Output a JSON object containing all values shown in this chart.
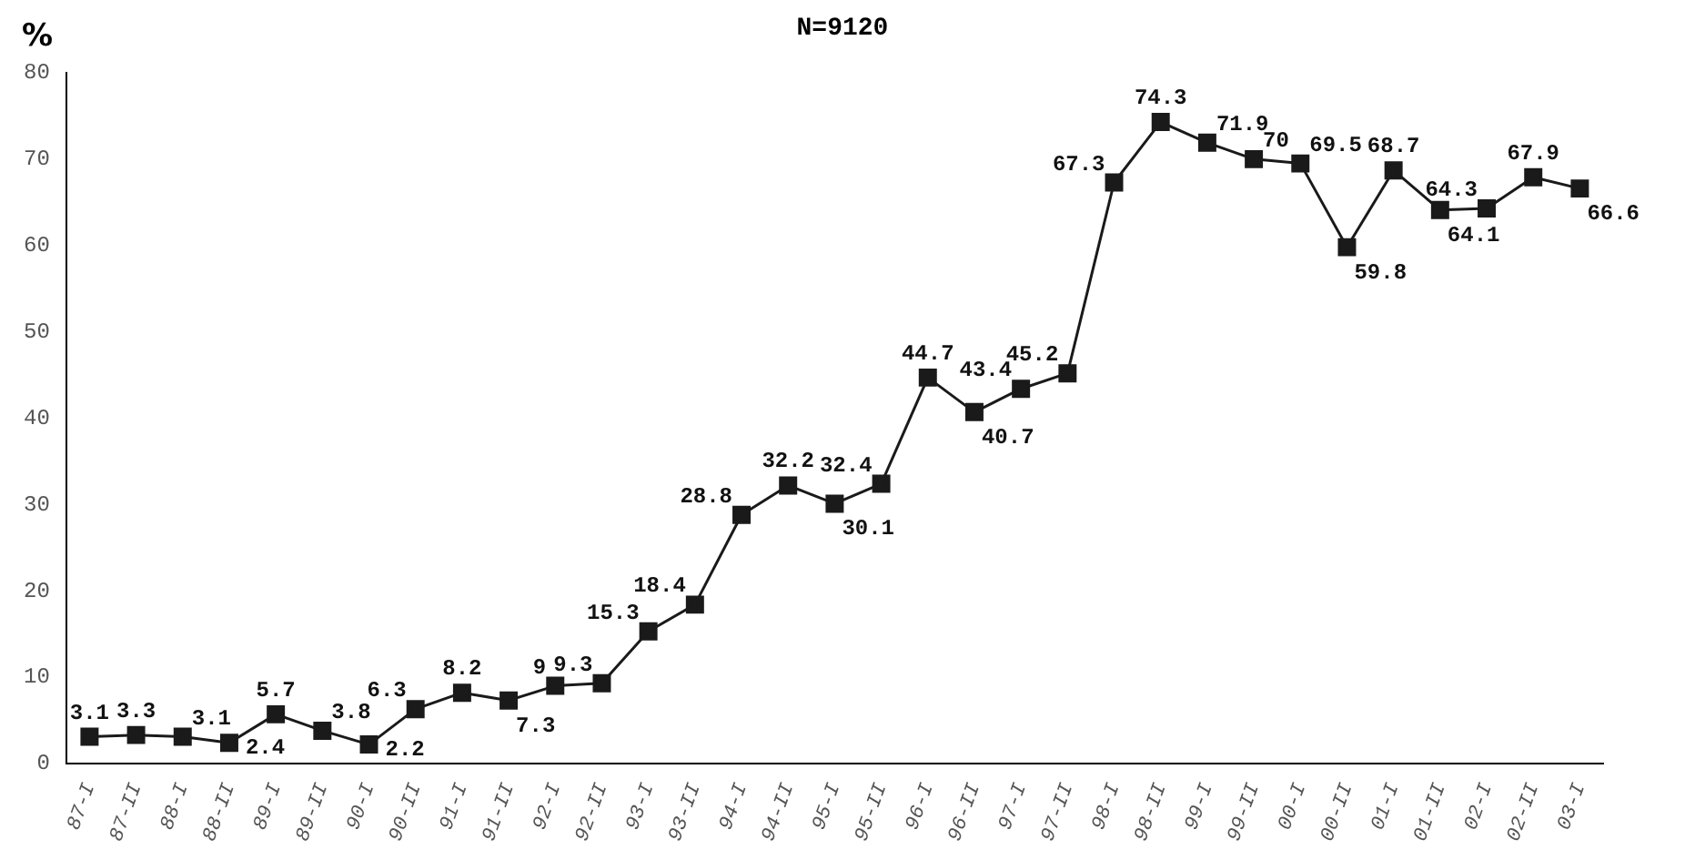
{
  "chart_data": {
    "type": "line",
    "title": "N=9120",
    "ylabel": "%",
    "categories": [
      "87-I",
      "87-II",
      "88-I",
      "88-II",
      "89-I",
      "89-II",
      "90-I",
      "90-II",
      "91-I",
      "91-II",
      "92-I",
      "92-II",
      "93-I",
      "93-II",
      "94-I",
      "94-II",
      "95-I",
      "95-II",
      "96-I",
      "96-II",
      "97-I",
      "97-II",
      "98-I",
      "98-II",
      "99-I",
      "99-II",
      "00-I",
      "00-II",
      "01-I",
      "01-II",
      "02-I",
      "02-II",
      "03-I"
    ],
    "series": [
      {
        "color": "#1a1a1a",
        "values": [
          3.1,
          3.3,
          3.1,
          2.4,
          5.7,
          3.8,
          2.2,
          6.3,
          8.2,
          7.3,
          9,
          9.3,
          15.3,
          18.4,
          28.8,
          32.2,
          30.1,
          32.4,
          44.7,
          40.7,
          43.4,
          45.2,
          67.3,
          74.3,
          71.9,
          70,
          69.5,
          59.8,
          68.7,
          64.1,
          64.3,
          67.9,
          66.6
        ]
      }
    ],
    "ylim": [
      0,
      80
    ],
    "yticks": [
      0,
      10,
      20,
      30,
      40,
      50,
      60,
      70,
      80
    ],
    "grid": false,
    "legend": false,
    "marker": "square",
    "line_style": "solid",
    "data_labels": true
  }
}
